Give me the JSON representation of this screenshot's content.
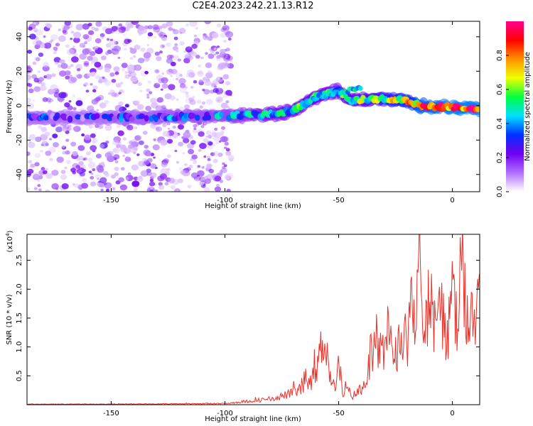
{
  "title": "C2E4.2023.242.21.13.R12",
  "chart_data": [
    {
      "type": "heatmap",
      "xlabel": "Height of straight line (km)",
      "ylabel": "Frequency (Hz)",
      "xlim": [
        -187,
        12
      ],
      "ylim": [
        -50,
        49
      ],
      "xticks": [
        -150,
        -100,
        -50,
        0
      ],
      "yticks": [
        -40,
        -20,
        0,
        20,
        40
      ],
      "colorbar": {
        "label": "Normalized spectral amplitude",
        "range": [
          0,
          1
        ],
        "ticks": [
          0.0,
          0.2,
          0.4,
          0.6,
          0.8
        ],
        "tick_labels": [
          "0.0",
          "0.2",
          "0.4",
          "0.6",
          "0.8"
        ],
        "colormap": [
          "#ffffff",
          "#b070ff",
          "#7000f0",
          "#0030ff",
          "#00e0ff",
          "#00ff40",
          "#f0ff00",
          "#ff9000",
          "#ff0000",
          "#ff0090"
        ]
      },
      "noise_region": {
        "x_range": [
          -187,
          -97
        ],
        "y_range": [
          -50,
          49
        ],
        "amplitude": 0.1
      },
      "ridge": [
        {
          "x": -187,
          "y": -7,
          "a": 0.25
        },
        {
          "x": -150,
          "y": -7,
          "a": 0.25
        },
        {
          "x": -97,
          "y": -6,
          "a": 0.35
        },
        {
          "x": -80,
          "y": -5,
          "a": 0.45
        },
        {
          "x": -70,
          "y": -3,
          "a": 0.45
        },
        {
          "x": -60,
          "y": 5,
          "a": 0.5
        },
        {
          "x": -50,
          "y": 9,
          "a": 0.45
        },
        {
          "x": -45,
          "y": 3,
          "a": 0.5
        },
        {
          "x": -30,
          "y": 4,
          "a": 0.6
        },
        {
          "x": -20,
          "y": 3,
          "a": 0.7
        },
        {
          "x": -14,
          "y": 0,
          "a": 0.8
        },
        {
          "x": 0,
          "y": -1,
          "a": 0.85
        },
        {
          "x": 12,
          "y": -2,
          "a": 0.85
        }
      ]
    },
    {
      "type": "line",
      "xlabel": "Height of straight line (km)",
      "ylabel": "SNR (10 * v/v)",
      "yscale_label": "(x10",
      "yscale_exp": "4",
      "yscale_close": ")",
      "xlim": [
        -187,
        12
      ],
      "ylim": [
        0,
        2.95
      ],
      "xticks": [
        -150,
        -100,
        -50,
        0
      ],
      "yticks": [
        0.5,
        1.0,
        1.5,
        2.0,
        2.5
      ],
      "ytick_labels": [
        "0.5",
        "1.0",
        "1.5",
        "2.0",
        "2.5"
      ],
      "color": "#e8322a",
      "series": [
        {
          "x": [
            -187,
            -150,
            -100,
            -90,
            -80,
            -70,
            -62,
            -58,
            -56,
            -54,
            -52,
            -50,
            -48,
            -46,
            -44,
            -42,
            -40,
            -38,
            -36,
            -34,
            -32,
            -30,
            -28,
            -26,
            -24,
            -22,
            -20,
            -18,
            -16,
            -14.5,
            -13,
            -10,
            -8,
            -6,
            -4,
            -2,
            0,
            2,
            4,
            6,
            8,
            10,
            12
          ],
          "y": [
            0.01,
            0.01,
            0.02,
            0.06,
            0.1,
            0.2,
            0.4,
            0.9,
            1.3,
            0.5,
            0.3,
            0.7,
            0.2,
            0.25,
            0.15,
            0.2,
            0.3,
            0.4,
            0.9,
            0.7,
            1.1,
            0.8,
            1.2,
            1.0,
            0.9,
            1.4,
            1.1,
            1.7,
            1.0,
            2.95,
            1.5,
            1.9,
            1.2,
            1.8,
            1.5,
            1.1,
            2.0,
            1.3,
            2.3,
            1.6,
            1.8,
            1.4,
            1.6
          ]
        }
      ]
    }
  ]
}
